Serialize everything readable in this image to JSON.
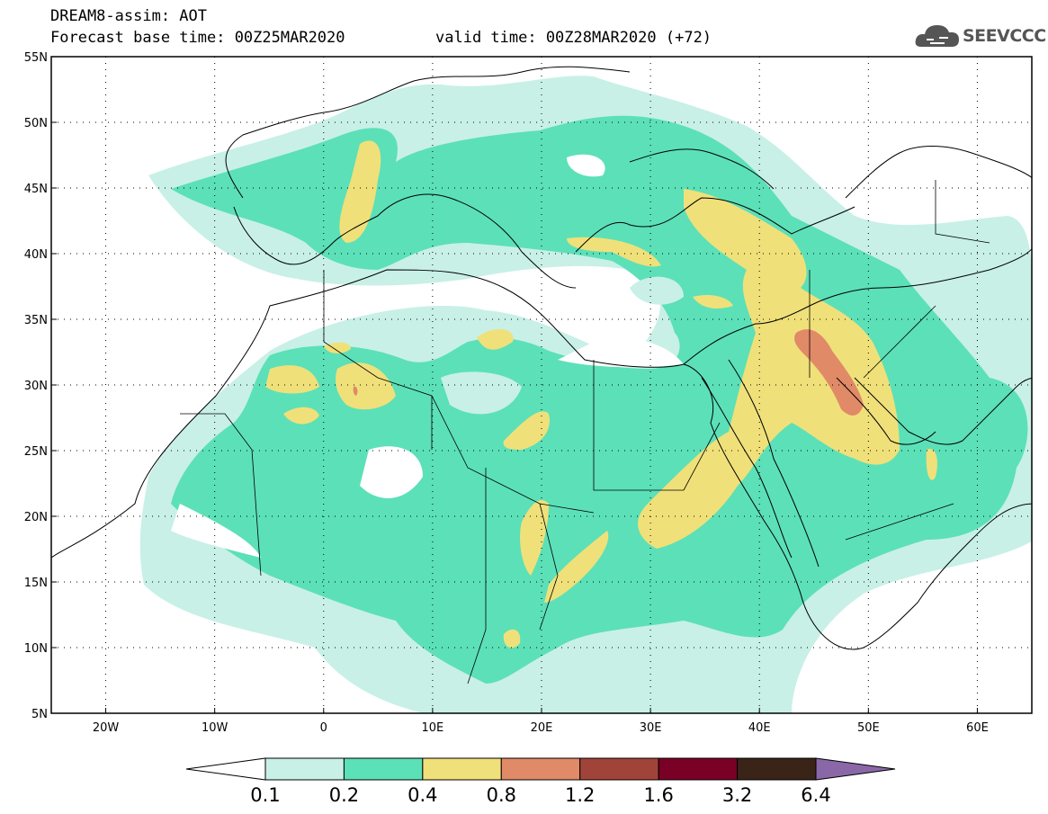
{
  "header": {
    "line1": "DREAM8-assim: AOT",
    "line2_left": "Forecast base time: 00Z25MAR2020",
    "line2_right": "valid time: 00Z28MAR2020 (+72)"
  },
  "logo": {
    "text": "SEEVCCC",
    "icon": "cloud-icon"
  },
  "map": {
    "lon_range": [
      -25,
      65
    ],
    "lat_range": [
      5,
      55
    ],
    "lon_ticks": [
      "20W",
      "10W",
      "0",
      "10E",
      "20E",
      "30E",
      "40E",
      "50E",
      "60E"
    ],
    "lat_ticks": [
      "55N",
      "50N",
      "45N",
      "40N",
      "35N",
      "30N",
      "25N",
      "20N",
      "15N",
      "10N",
      "5N"
    ],
    "colors": {
      "c1": "#c8f0e6",
      "c2": "#5ce0b8",
      "c3": "#f0e07a",
      "c4": "#e08a68",
      "c5": "#a0443a",
      "c6": "#7a0026",
      "c7": "#3a2418",
      "c8": "#8a68a8"
    }
  },
  "colorbar": {
    "labels": [
      "0.1",
      "0.2",
      "0.4",
      "0.8",
      "1.2",
      "1.6",
      "3.2",
      "6.4"
    ],
    "colors": [
      "#ffffff",
      "#c8f0e6",
      "#5ce0b8",
      "#f0e07a",
      "#e08a68",
      "#a0443a",
      "#7a0026",
      "#3a2418",
      "#8a68a8"
    ]
  }
}
